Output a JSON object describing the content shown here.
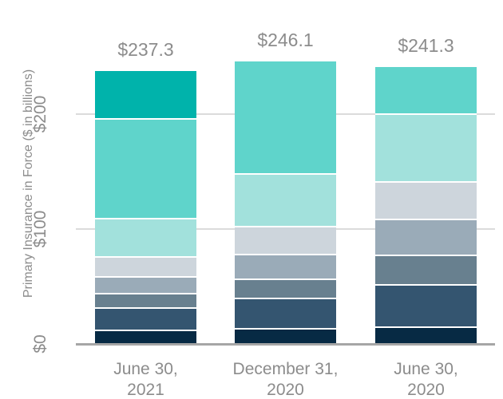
{
  "style": {
    "background": "#FFFFFF",
    "label_color": "#8C8C8C",
    "gridline_color": "#DBDBDB",
    "axis_line_color": "#A6A6A6",
    "separator_color": "#FFFFFF"
  },
  "chart_data": {
    "type": "bar",
    "stacked": true,
    "title": "",
    "ylabel": "Primary Insurance in Force ($ in billions)",
    "xlabel": "",
    "unit": "USD billions",
    "legend": "none",
    "grid": "horizontal",
    "y_axis": {
      "ylim": [
        0,
        260
      ],
      "ticks": [
        {
          "label": "$0",
          "value": 0
        },
        {
          "label": "$100",
          "value": 100
        },
        {
          "label": "$200",
          "value": 200
        }
      ]
    },
    "palette": {
      "teal_dark": "#00B3AB",
      "teal_medium": "#5FD4CB",
      "teal_pale": "#A2E1DC",
      "gray_light": "#CDD5DC",
      "blue_gray": "#9AABB8",
      "slate": "#68808F",
      "dark_slate": "#345570",
      "navy": "#072A44"
    },
    "bars": [
      {
        "label_line1": "June 30,",
        "label_line2": "2021",
        "total_label": "$237.3",
        "total": 237.3,
        "segments_top_to_bottom": [
          {
            "value": 40.8,
            "color": "#00B3AB"
          },
          {
            "value": 86.9,
            "color": "#5FD4CB"
          },
          {
            "value": 33.4,
            "color": "#A2E1DC"
          },
          {
            "value": 17.4,
            "color": "#CDD5DC"
          },
          {
            "value": 14.6,
            "color": "#9AABB8"
          },
          {
            "value": 12.2,
            "color": "#68808F"
          },
          {
            "value": 19.5,
            "color": "#345570"
          },
          {
            "value": 12.5,
            "color": "#072A44"
          }
        ]
      },
      {
        "label_line1": "December 31,",
        "label_line2": "2020",
        "total_label": "$246.1",
        "total": 246.1,
        "segments_top_to_bottom": [
          {
            "value": 97.7,
            "color": "#5FD4CB"
          },
          {
            "value": 45.5,
            "color": "#A2E1DC"
          },
          {
            "value": 24.2,
            "color": "#CDD5DC"
          },
          {
            "value": 21.7,
            "color": "#9AABB8"
          },
          {
            "value": 16.9,
            "color": "#68808F"
          },
          {
            "value": 26.3,
            "color": "#345570"
          },
          {
            "value": 13.8,
            "color": "#072A44"
          }
        ]
      },
      {
        "label_line1": "June 30,",
        "label_line2": "2020",
        "total_label": "$241.3",
        "total": 241.3,
        "segments_top_to_bottom": [
          {
            "value": 40.5,
            "color": "#5FD4CB"
          },
          {
            "value": 58.9,
            "color": "#A2E1DC"
          },
          {
            "value": 33.1,
            "color": "#CDD5DC"
          },
          {
            "value": 30.9,
            "color": "#9AABB8"
          },
          {
            "value": 25.7,
            "color": "#68808F"
          },
          {
            "value": 36.8,
            "color": "#345570"
          },
          {
            "value": 15.4,
            "color": "#072A44"
          }
        ]
      }
    ]
  }
}
